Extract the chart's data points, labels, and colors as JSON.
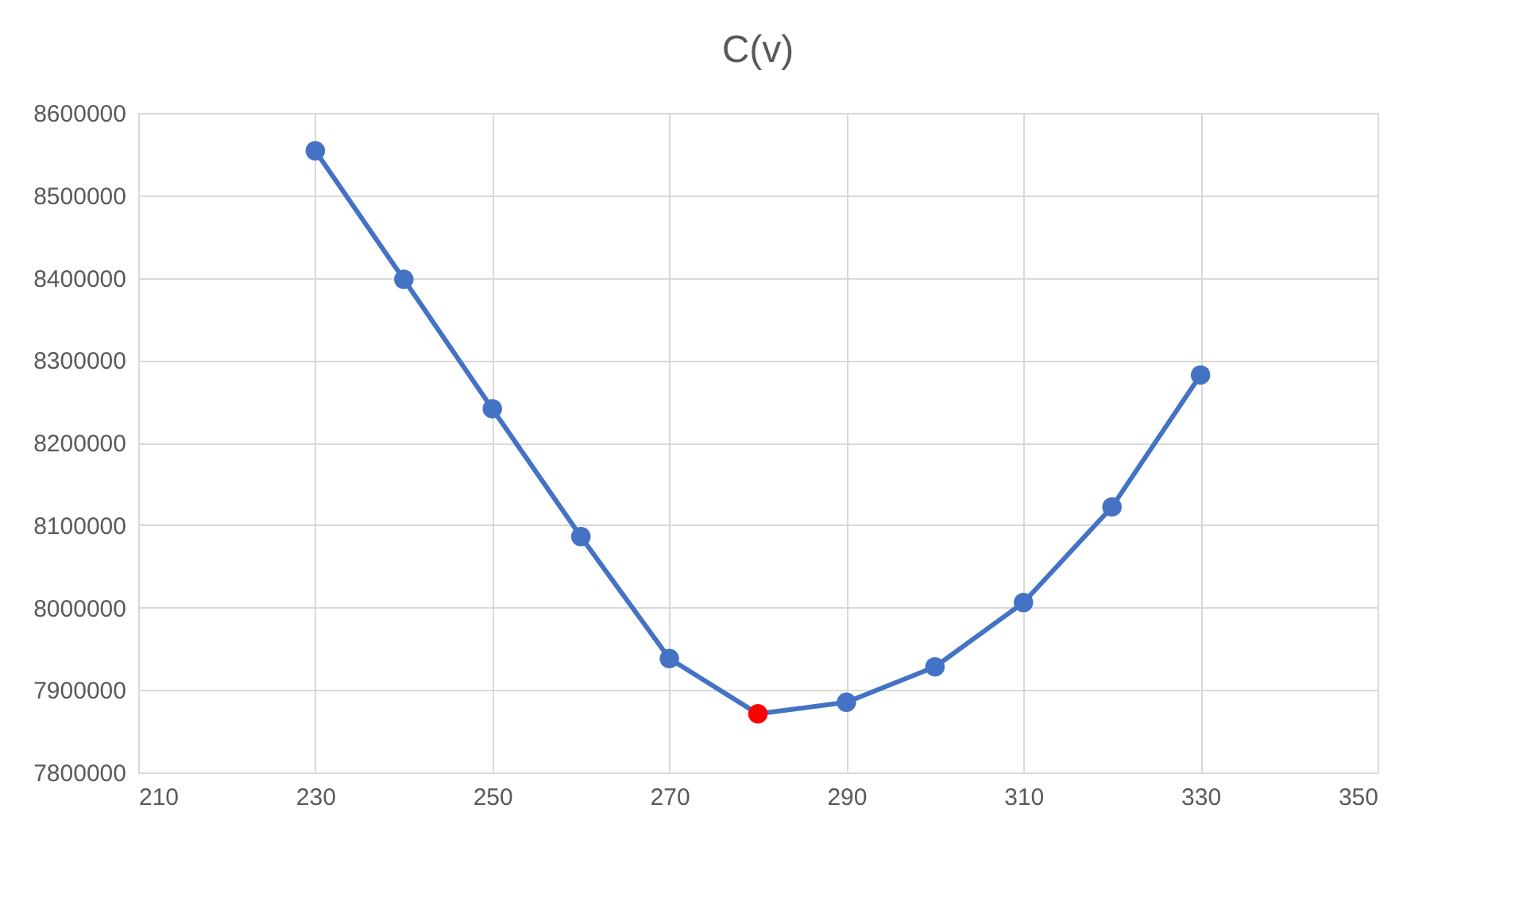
{
  "chart_data": {
    "type": "line",
    "title": "C(v)",
    "x": [
      230,
      240,
      250,
      260,
      270,
      280,
      290,
      300,
      310,
      320,
      330
    ],
    "series": [
      {
        "color": "#4472c4",
        "colors": [
          "#4472c4",
          "#4472c4",
          "#4472c4",
          "#4472c4",
          "#4472c4",
          "#ff0000",
          "#4472c4",
          "#4472c4",
          "#4472c4",
          "#4472c4",
          "#4472c4"
        ],
        "values": [
          8554000,
          8398000,
          8241000,
          8086000,
          7938000,
          7871000,
          7885000,
          7928000,
          8006000,
          8122000,
          8282000
        ]
      }
    ],
    "xlim": [
      210,
      350
    ],
    "xticks": [
      210,
      230,
      250,
      270,
      290,
      310,
      330,
      350
    ],
    "ylim": [
      7800000,
      8600000
    ],
    "yticks": [
      7800000,
      7900000,
      8000000,
      8100000,
      8200000,
      8300000,
      8400000,
      8500000,
      8600000
    ],
    "grid": true,
    "marker": "circle",
    "line_style": "solid"
  }
}
